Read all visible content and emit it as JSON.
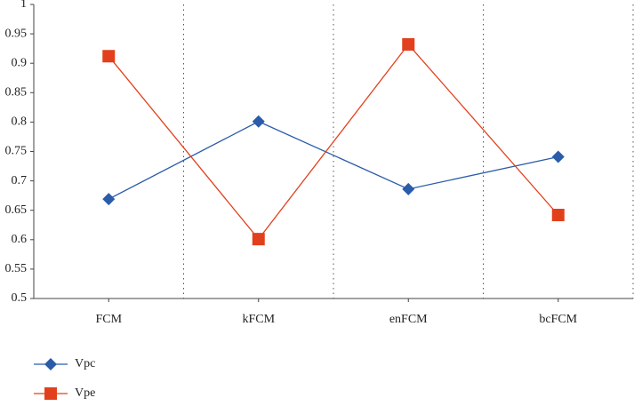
{
  "chart_data": {
    "type": "line",
    "categories": [
      "FCM",
      "kFCM",
      "enFCM",
      "bcFCM"
    ],
    "series": [
      {
        "name": "Vpc",
        "color": "#2a5caa",
        "marker": "diamond",
        "values": [
          0.669,
          0.801,
          0.686,
          0.741
        ]
      },
      {
        "name": "Vpe",
        "color": "#e2401c",
        "marker": "square",
        "values": [
          0.912,
          0.601,
          0.932,
          0.642
        ]
      }
    ],
    "ylim": [
      0.5,
      1
    ],
    "yticks": [
      0.5,
      0.55,
      0.6,
      0.65,
      0.7,
      0.75,
      0.8,
      0.85,
      0.9,
      0.95,
      1
    ],
    "category_separators": true,
    "legend": "bottom-left"
  }
}
